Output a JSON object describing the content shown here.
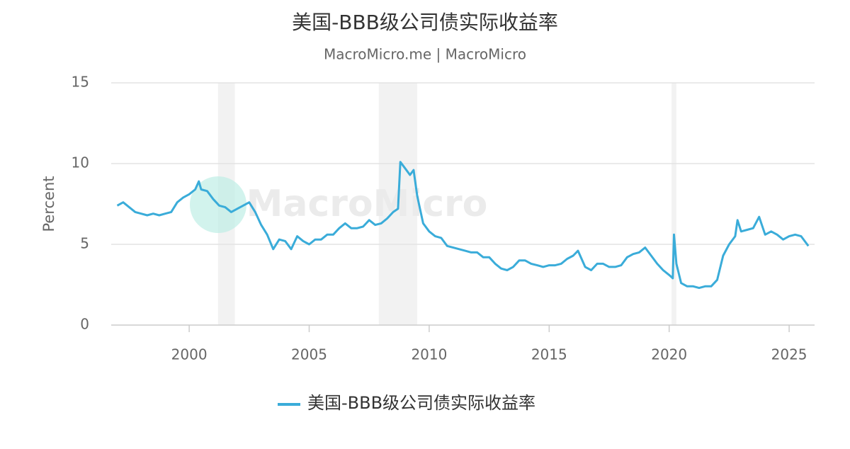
{
  "chart_data": {
    "type": "line",
    "title": "美国-BBB级公司债实际收益率",
    "subtitle": "MacroMicro.me | MacroMicro",
    "watermark": "MacroMicro",
    "y_label": "Percent",
    "xlim": [
      1996.75,
      2026.06
    ],
    "xticks": [
      2000,
      2005,
      2010,
      2015,
      2020,
      2025
    ],
    "ylim": [
      0,
      15
    ],
    "yticks": [
      0,
      5,
      10,
      15
    ],
    "grid": true,
    "shaded_periods": [
      [
        2001.2,
        2001.9
      ],
      [
        2007.9,
        2009.5
      ],
      [
        2020.1,
        2020.3
      ]
    ],
    "series": [
      {
        "name": "美国-BBB级公司债实际收益率",
        "color": "#3aacd9",
        "x": [
          1997.0,
          1997.25,
          1997.5,
          1997.75,
          1998.0,
          1998.25,
          1998.5,
          1998.75,
          1999.0,
          1999.25,
          1999.5,
          1999.75,
          2000.0,
          2000.25,
          2000.4,
          2000.5,
          2000.75,
          2001.0,
          2001.25,
          2001.5,
          2001.75,
          2002.0,
          2002.25,
          2002.5,
          2002.75,
          2003.0,
          2003.25,
          2003.5,
          2003.75,
          2004.0,
          2004.25,
          2004.5,
          2004.75,
          2005.0,
          2005.25,
          2005.5,
          2005.75,
          2006.0,
          2006.25,
          2006.5,
          2006.75,
          2007.0,
          2007.25,
          2007.5,
          2007.75,
          2008.0,
          2008.25,
          2008.5,
          2008.7,
          2008.8,
          2009.0,
          2009.2,
          2009.35,
          2009.5,
          2009.75,
          2010.0,
          2010.25,
          2010.5,
          2010.75,
          2011.0,
          2011.25,
          2011.5,
          2011.75,
          2012.0,
          2012.25,
          2012.5,
          2012.75,
          2013.0,
          2013.25,
          2013.5,
          2013.75,
          2014.0,
          2014.25,
          2014.5,
          2014.75,
          2015.0,
          2015.25,
          2015.5,
          2015.75,
          2016.0,
          2016.2,
          2016.5,
          2016.75,
          2017.0,
          2017.25,
          2017.5,
          2017.75,
          2018.0,
          2018.25,
          2018.5,
          2018.75,
          2019.0,
          2019.25,
          2019.5,
          2019.75,
          2020.0,
          2020.15,
          2020.2,
          2020.3,
          2020.5,
          2020.75,
          2021.0,
          2021.25,
          2021.5,
          2021.75,
          2022.0,
          2022.25,
          2022.5,
          2022.75,
          2022.85,
          2023.0,
          2023.25,
          2023.5,
          2023.75,
          2024.0,
          2024.25,
          2024.5,
          2024.75,
          2025.0,
          2025.25,
          2025.5,
          2025.75,
          2025.8
        ],
        "values": [
          7.4,
          7.6,
          7.3,
          7.0,
          6.9,
          6.8,
          6.9,
          6.8,
          6.9,
          7.0,
          7.6,
          7.9,
          8.1,
          8.4,
          8.9,
          8.4,
          8.3,
          7.8,
          7.4,
          7.3,
          7.0,
          7.2,
          7.4,
          7.6,
          7.0,
          6.2,
          5.6,
          4.7,
          5.3,
          5.2,
          4.7,
          5.5,
          5.2,
          5.0,
          5.3,
          5.3,
          5.6,
          5.6,
          6.0,
          6.3,
          6.0,
          6.0,
          6.1,
          6.5,
          6.2,
          6.3,
          6.6,
          7.0,
          7.2,
          10.1,
          9.7,
          9.3,
          9.6,
          8.0,
          6.3,
          5.8,
          5.5,
          5.4,
          4.9,
          4.8,
          4.7,
          4.6,
          4.5,
          4.5,
          4.2,
          4.2,
          3.8,
          3.5,
          3.4,
          3.6,
          4.0,
          4.0,
          3.8,
          3.7,
          3.6,
          3.7,
          3.7,
          3.8,
          4.1,
          4.3,
          4.6,
          3.6,
          3.4,
          3.8,
          3.8,
          3.6,
          3.6,
          3.7,
          4.2,
          4.4,
          4.5,
          4.8,
          4.3,
          3.8,
          3.4,
          3.1,
          2.9,
          5.6,
          3.8,
          2.6,
          2.4,
          2.4,
          2.3,
          2.4,
          2.4,
          2.8,
          4.3,
          5.0,
          5.5,
          6.5,
          5.8,
          5.9,
          6.0,
          6.7,
          5.6,
          5.8,
          5.6,
          5.3,
          5.5,
          5.6,
          5.5,
          5.0,
          4.9
        ]
      }
    ]
  }
}
